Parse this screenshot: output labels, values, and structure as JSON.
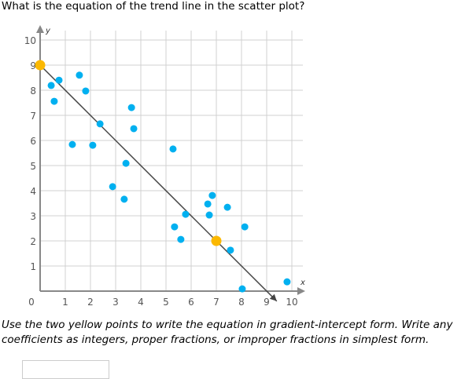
{
  "question": "What is the equation of the trend line in the scatter plot?",
  "instruction_line1": "Use the two yellow points to write the equation in gradient-intercept form. Write any",
  "instruction_line2": "coefficients as integers, proper fractions, or improper fractions in simplest form.",
  "answer_value": "",
  "chart_data": {
    "type": "scatter",
    "xlabel": "x",
    "ylabel": "y",
    "xlim": [
      0,
      10
    ],
    "ylim": [
      0,
      10
    ],
    "xticks": [
      "0",
      "1",
      "2",
      "3",
      "4",
      "5",
      "6",
      "7",
      "8",
      "9",
      "10"
    ],
    "yticks": [
      "1",
      "2",
      "3",
      "4",
      "5",
      "6",
      "7",
      "8",
      "9",
      "10"
    ],
    "grid": true,
    "points": [
      [
        0.44,
        8.19
      ],
      [
        0.75,
        8.4
      ],
      [
        0.56,
        7.56
      ],
      [
        1.56,
        8.6
      ],
      [
        1.81,
        7.97
      ],
      [
        1.28,
        5.84
      ],
      [
        2.09,
        5.81
      ],
      [
        2.38,
        6.66
      ],
      [
        3.63,
        7.31
      ],
      [
        3.72,
        6.47
      ],
      [
        3.41,
        5.09
      ],
      [
        2.88,
        4.16
      ],
      [
        3.34,
        3.66
      ],
      [
        5.28,
        5.66
      ],
      [
        5.34,
        2.56
      ],
      [
        5.59,
        2.06
      ],
      [
        5.78,
        3.06
      ],
      [
        6.66,
        3.47
      ],
      [
        6.84,
        3.81
      ],
      [
        6.72,
        3.03
      ],
      [
        7.44,
        3.34
      ],
      [
        8.13,
        2.56
      ],
      [
        7.56,
        1.63
      ],
      [
        8.03,
        0.09
      ],
      [
        9.81,
        0.37
      ]
    ],
    "highlight_points": [
      [
        0,
        9
      ],
      [
        7,
        2
      ]
    ],
    "trend_line": {
      "from": [
        0,
        9
      ],
      "to": [
        9.4,
        -0.4
      ]
    },
    "colors": {
      "points": "#00b0f0",
      "highlight": "#fbb800",
      "line": "#444444",
      "grid": "#d0d0d0"
    }
  }
}
